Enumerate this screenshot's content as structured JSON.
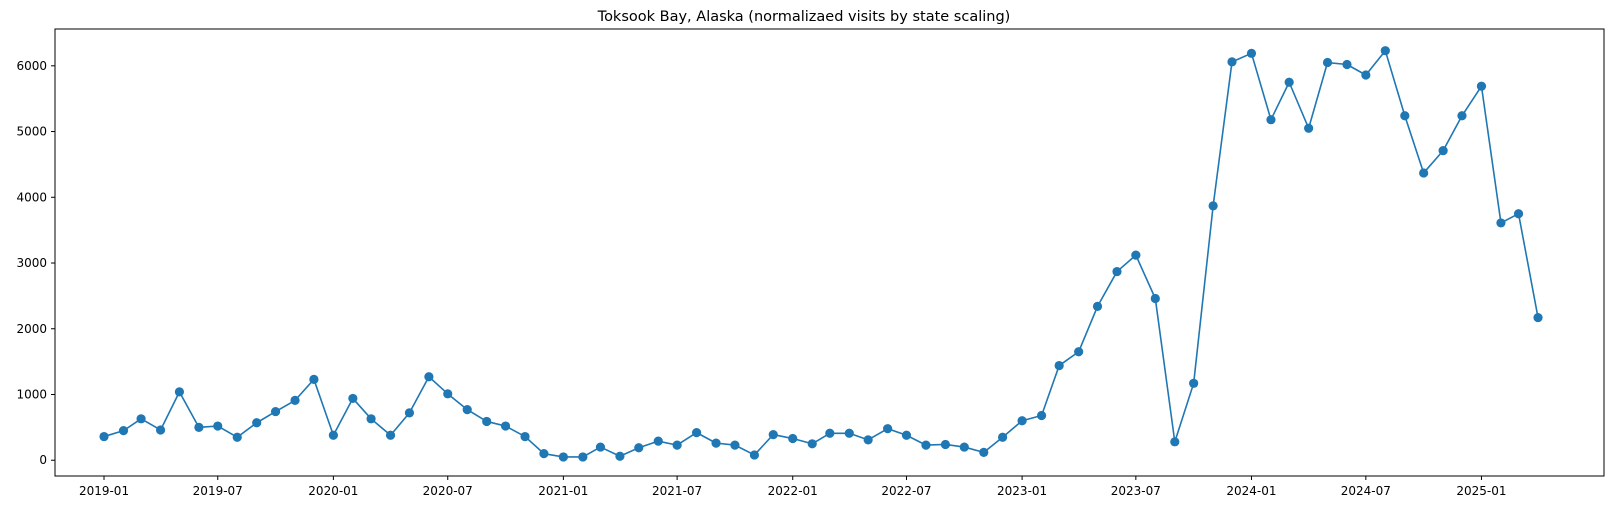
{
  "chart_data": {
    "type": "line",
    "title": "Toksook Bay, Alaska (normalizaed visits by state scaling)",
    "xlabel": "",
    "ylabel": "",
    "x_start": "2019-01",
    "x_step": "1 month",
    "xlim": [
      "2018-10-15",
      "2025-07-15"
    ],
    "ylim": [
      -240,
      6560
    ],
    "xticks": [
      "2019-01",
      "2019-07",
      "2020-01",
      "2020-07",
      "2021-01",
      "2021-07",
      "2022-01",
      "2022-07",
      "2023-01",
      "2023-07",
      "2024-01",
      "2024-07",
      "2025-01"
    ],
    "yticks": [
      0,
      1000,
      2000,
      3000,
      4000,
      5000,
      6000
    ],
    "marker": "circle",
    "grid": false,
    "color": "#1f77b4",
    "series": [
      {
        "name": "",
        "x": [
          "2019-01",
          "2019-02",
          "2019-03",
          "2019-04",
          "2019-05",
          "2019-06",
          "2019-07",
          "2019-08",
          "2019-09",
          "2019-10",
          "2019-11",
          "2019-12",
          "2020-01",
          "2020-02",
          "2020-03",
          "2020-04",
          "2020-05",
          "2020-06",
          "2020-07",
          "2020-08",
          "2020-09",
          "2020-10",
          "2020-11",
          "2020-12",
          "2021-01",
          "2021-02",
          "2021-03",
          "2021-04",
          "2021-05",
          "2021-06",
          "2021-07",
          "2021-08",
          "2021-09",
          "2021-10",
          "2021-11",
          "2021-12",
          "2022-01",
          "2022-02",
          "2022-03",
          "2022-04",
          "2022-05",
          "2022-06",
          "2022-07",
          "2022-08",
          "2022-09",
          "2022-10",
          "2022-11",
          "2022-12",
          "2023-01",
          "2023-02",
          "2023-03",
          "2023-04",
          "2023-05",
          "2023-06",
          "2023-07",
          "2023-08",
          "2023-09",
          "2023-10",
          "2023-11",
          "2023-12",
          "2024-01",
          "2024-02",
          "2024-03",
          "2024-04",
          "2024-05",
          "2024-06",
          "2024-07",
          "2024-08",
          "2024-09",
          "2024-10",
          "2024-11",
          "2024-12",
          "2025-01",
          "2025-02",
          "2025-03",
          "2025-04"
        ],
        "values": [
          360,
          450,
          630,
          460,
          1040,
          500,
          520,
          350,
          570,
          740,
          910,
          1230,
          380,
          940,
          630,
          380,
          720,
          1270,
          1010,
          770,
          590,
          520,
          360,
          100,
          50,
          50,
          200,
          60,
          190,
          290,
          230,
          420,
          260,
          230,
          80,
          390,
          330,
          250,
          410,
          410,
          310,
          480,
          380,
          230,
          240,
          200,
          120,
          350,
          600,
          680,
          1440,
          1650,
          2340,
          2870,
          3120,
          2460,
          280,
          1170,
          3870,
          6060,
          6190,
          5180,
          5750,
          5050,
          6050,
          6020,
          5860,
          6230,
          5240,
          4370,
          4710,
          5240,
          5690,
          3610,
          3750,
          2170
        ]
      }
    ]
  }
}
